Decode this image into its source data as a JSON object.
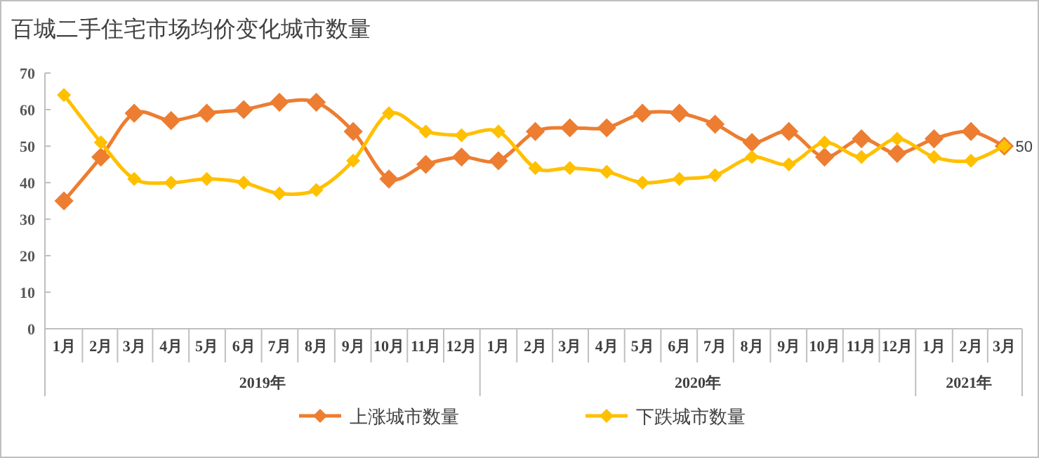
{
  "chart_data": {
    "type": "line",
    "title": "百城二手住宅市场均价变化城市数量",
    "x": [
      "2019-01",
      "2019-02",
      "2019-03",
      "2019-04",
      "2019-05",
      "2019-06",
      "2019-07",
      "2019-08",
      "2019-09",
      "2019-10",
      "2019-11",
      "2019-12",
      "2020-01",
      "2020-02",
      "2020-03",
      "2020-04",
      "2020-05",
      "2020-06",
      "2020-07",
      "2020-08",
      "2020-09",
      "2020-10",
      "2020-11",
      "2020-12",
      "2021-01",
      "2021-02",
      "2021-03"
    ],
    "xlim": [
      "2018-12-16",
      "2021-03-16"
    ],
    "xticks": [
      {
        "value": "2019-01",
        "label": "1月"
      },
      {
        "value": "2019-02",
        "label": "2月"
      },
      {
        "value": "2019-03",
        "label": "3月"
      },
      {
        "value": "2019-04",
        "label": "4月"
      },
      {
        "value": "2019-05",
        "label": "5月"
      },
      {
        "value": "2019-06",
        "label": "6月"
      },
      {
        "value": "2019-07",
        "label": "7月"
      },
      {
        "value": "2019-08",
        "label": "8月"
      },
      {
        "value": "2019-09",
        "label": "9月"
      },
      {
        "value": "2019-10",
        "label": "10月"
      },
      {
        "value": "2019-11",
        "label": "11月"
      },
      {
        "value": "2019-12",
        "label": "12月"
      },
      {
        "value": "2020-01",
        "label": "1月"
      },
      {
        "value": "2020-02",
        "label": "2月"
      },
      {
        "value": "2020-03",
        "label": "3月"
      },
      {
        "value": "2020-04",
        "label": "4月"
      },
      {
        "value": "2020-05",
        "label": "5月"
      },
      {
        "value": "2020-06",
        "label": "6月"
      },
      {
        "value": "2020-07",
        "label": "7月"
      },
      {
        "value": "2020-08",
        "label": "8月"
      },
      {
        "value": "2020-09",
        "label": "9月"
      },
      {
        "value": "2020-10",
        "label": "10月"
      },
      {
        "value": "2020-11",
        "label": "11月"
      },
      {
        "value": "2020-12",
        "label": "12月"
      },
      {
        "value": "2021-01",
        "label": "1月"
      },
      {
        "value": "2021-02",
        "label": "2月"
      },
      {
        "value": "2021-03",
        "label": "3月"
      }
    ],
    "annotations": [
      "2019年",
      "2020年",
      "2021年"
    ],
    "series": [
      {
        "name": "上涨城市数量",
        "color": "#ed7d31",
        "values": [
          35,
          47,
          59,
          57,
          59,
          60,
          62,
          62,
          54,
          41,
          45,
          47,
          46,
          54,
          55,
          55,
          59,
          59,
          56,
          51,
          54,
          47,
          52,
          48,
          52,
          54,
          50
        ]
      },
      {
        "name": "下跌城市数量",
        "color": "#ffc000",
        "values": [
          64,
          51,
          41,
          40,
          41,
          40,
          37,
          38,
          46,
          59,
          54,
          53,
          54,
          44,
          44,
          43,
          40,
          41,
          42,
          47,
          45,
          51,
          47,
          52,
          47,
          46,
          50
        ],
        "value_labels": [
          null,
          null,
          null,
          null,
          null,
          null,
          null,
          null,
          null,
          null,
          null,
          null,
          null,
          null,
          null,
          null,
          null,
          null,
          null,
          null,
          null,
          null,
          null,
          null,
          null,
          null,
          "50"
        ]
      }
    ],
    "ylim": [
      0,
      70
    ],
    "yticks": [
      0,
      10,
      20,
      30,
      40,
      50,
      60,
      70
    ],
    "grid": false,
    "legend": "bottom",
    "marker": "diamond",
    "line_style": "solid"
  }
}
